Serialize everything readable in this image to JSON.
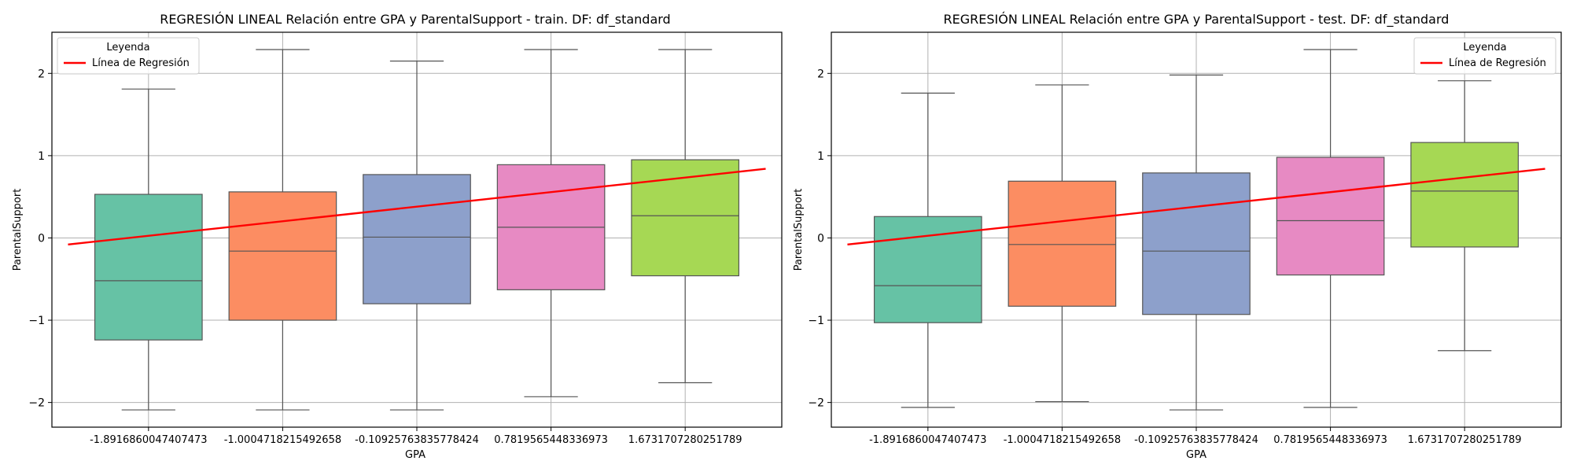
{
  "chart_data": [
    {
      "type": "box",
      "title": "REGRESIÓN LINEAL Relación entre GPA y ParentalSupport - train. DF: df_standard",
      "xlabel": "GPA",
      "ylabel": "ParentalSupport",
      "ylim": [
        -2.3,
        2.5
      ],
      "yticks": [
        -2,
        -1,
        0,
        1,
        2
      ],
      "grid": true,
      "legend": {
        "title": "Leyenda",
        "placement": "top-left",
        "entries": [
          {
            "label": "Línea de Regresión",
            "color": "#ff0000"
          }
        ]
      },
      "categories": [
        "-1.8916860047407473",
        "-1.0004718215492658",
        "-0.10925763835778424",
        "0.7819565448336973",
        "1.6731707280251789"
      ],
      "boxes": [
        {
          "whisker_low": -2.09,
          "q1": -1.24,
          "median": -0.52,
          "q3": 0.53,
          "whisker_high": 1.81,
          "color": "#66c2a5"
        },
        {
          "whisker_low": -2.09,
          "q1": -1.0,
          "median": -0.16,
          "q3": 0.56,
          "whisker_high": 2.29,
          "color": "#fc8d62"
        },
        {
          "whisker_low": -2.09,
          "q1": -0.8,
          "median": 0.01,
          "q3": 0.77,
          "whisker_high": 2.15,
          "color": "#8da0cb"
        },
        {
          "whisker_low": -1.93,
          "q1": -0.63,
          "median": 0.13,
          "q3": 0.89,
          "whisker_high": 2.29,
          "color": "#e78ac3"
        },
        {
          "whisker_low": -1.76,
          "q1": -0.46,
          "median": 0.27,
          "q3": 0.95,
          "whisker_high": 2.29,
          "color": "#a6d854"
        }
      ],
      "regression_line": {
        "name": "Línea de Regresión",
        "color": "#ff0000",
        "x_start": -0.6,
        "y_start": -0.08,
        "x_end": 4.6,
        "y_end": 0.84
      }
    },
    {
      "type": "box",
      "title": "REGRESIÓN LINEAL Relación entre GPA y ParentalSupport - test. DF: df_standard",
      "xlabel": "GPA",
      "ylabel": "ParentalSupport",
      "ylim": [
        -2.3,
        2.5
      ],
      "yticks": [
        -2,
        -1,
        0,
        1,
        2
      ],
      "grid": true,
      "legend": {
        "title": "Leyenda",
        "placement": "top-right",
        "entries": [
          {
            "label": "Línea de Regresión",
            "color": "#ff0000"
          }
        ]
      },
      "categories": [
        "-1.8916860047407473",
        "-1.0004718215492658",
        "-0.10925763835778424",
        "0.7819565448336973",
        "1.6731707280251789"
      ],
      "boxes": [
        {
          "whisker_low": -2.06,
          "q1": -1.03,
          "median": -0.58,
          "q3": 0.26,
          "whisker_high": 1.76,
          "color": "#66c2a5"
        },
        {
          "whisker_low": -1.99,
          "q1": -0.83,
          "median": -0.08,
          "q3": 0.69,
          "whisker_high": 1.86,
          "color": "#fc8d62"
        },
        {
          "whisker_low": -2.09,
          "q1": -0.93,
          "median": -0.16,
          "q3": 0.79,
          "whisker_high": 1.98,
          "color": "#8da0cb"
        },
        {
          "whisker_low": -2.06,
          "q1": -0.45,
          "median": 0.21,
          "q3": 0.98,
          "whisker_high": 2.29,
          "color": "#e78ac3"
        },
        {
          "whisker_low": -1.37,
          "q1": -0.11,
          "median": 0.57,
          "q3": 1.16,
          "whisker_high": 1.91,
          "color": "#a6d854"
        }
      ],
      "regression_line": {
        "name": "Línea de Regresión",
        "color": "#ff0000",
        "x_start": -0.6,
        "y_start": -0.08,
        "x_end": 4.6,
        "y_end": 0.84
      }
    }
  ]
}
